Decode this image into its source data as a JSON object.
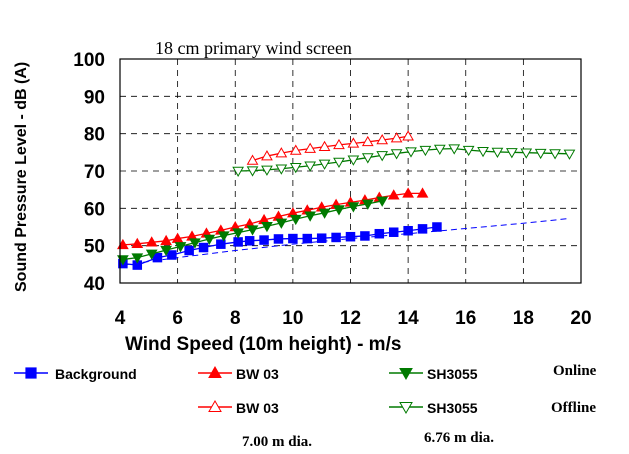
{
  "chart_data": {
    "type": "line",
    "title": "18 cm primary wind screen",
    "xlabel": "Wind Speed (10m height) - m/s",
    "ylabel": "Sound Pressure Level - dB (A)",
    "xlim": [
      4,
      20
    ],
    "ylim": [
      40,
      100
    ],
    "xticks": [
      "4",
      "6",
      "8",
      "10",
      "12",
      "14",
      "16",
      "18",
      "20"
    ],
    "yticks": [
      "40",
      "50",
      "60",
      "70",
      "80",
      "90",
      "100"
    ],
    "grid": "dashed",
    "series": [
      {
        "name": "Background",
        "color": "#0000ff",
        "marker": "square-filled",
        "x": [
          4.1,
          4.6,
          5.3,
          5.8,
          6.4,
          6.9,
          7.5,
          8.1,
          8.5,
          9.0,
          9.5,
          10.0,
          10.5,
          11.0,
          11.5,
          12.0,
          12.5,
          13.0,
          13.5,
          14.0,
          14.5,
          15.0
        ],
        "y": [
          45.2,
          44.8,
          46.8,
          47.5,
          48.7,
          49.5,
          50.4,
          51.0,
          51.3,
          51.5,
          51.8,
          51.9,
          51.9,
          52.0,
          52.2,
          52.4,
          52.6,
          53.2,
          53.6,
          54.0,
          54.5,
          55.0
        ]
      },
      {
        "name": "Background trend",
        "color": "#0000ff",
        "style": "dashed",
        "x": [
          4.1,
          6,
          8,
          10,
          12,
          14,
          16,
          18,
          19.5
        ],
        "y": [
          44.8,
          46.8,
          48.7,
          50.4,
          51.9,
          53.2,
          54.6,
          56.0,
          57.2
        ]
      },
      {
        "name": "BW 03 Online",
        "color": "#ff0000",
        "marker": "triangle-up-filled",
        "x": [
          4.1,
          4.6,
          5.1,
          5.6,
          6.0,
          6.5,
          7.0,
          7.5,
          8.0,
          8.5,
          9.0,
          9.5,
          10.0,
          10.5,
          11.0,
          11.5,
          12.0,
          12.5,
          13.0,
          13.5,
          14.0,
          14.5
        ],
        "y": [
          50.2,
          50.5,
          50.9,
          51.3,
          51.9,
          52.5,
          53.3,
          54.1,
          55.0,
          55.8,
          56.9,
          57.8,
          58.7,
          59.5,
          60.3,
          61.0,
          61.6,
          62.2,
          62.9,
          63.5,
          64.0,
          64.0
        ]
      },
      {
        "name": "BW 03 Offline",
        "color": "#ff0000",
        "marker": "triangle-up-open",
        "x": [
          8.6,
          9.1,
          9.6,
          10.1,
          10.6,
          11.1,
          11.6,
          12.1,
          12.6,
          13.1,
          13.6,
          14.0
        ],
        "y": [
          72.8,
          74.0,
          74.8,
          75.5,
          76.0,
          76.5,
          77.0,
          77.4,
          77.8,
          78.3,
          78.8,
          79.3
        ]
      },
      {
        "name": "SH3055 Online",
        "color": "#007a00",
        "marker": "triangle-down-filled",
        "x": [
          4.1,
          4.6,
          5.1,
          5.6,
          6.1,
          6.6,
          7.1,
          7.6,
          8.1,
          8.6,
          9.1,
          9.6,
          10.1,
          10.6,
          11.1,
          11.6,
          12.1,
          12.6,
          13.1
        ],
        "y": [
          46.3,
          46.8,
          47.8,
          48.8,
          49.8,
          50.8,
          51.8,
          52.7,
          53.5,
          54.3,
          55.2,
          56.1,
          57.1,
          58.0,
          58.8,
          59.7,
          60.5,
          61.2,
          62.0
        ]
      },
      {
        "name": "SH3055 Offline",
        "color": "#007a00",
        "marker": "triangle-down-open",
        "x": [
          8.1,
          8.6,
          9.1,
          9.6,
          10.1,
          10.6,
          11.1,
          11.6,
          12.1,
          12.6,
          13.1,
          13.6,
          14.1,
          14.6,
          15.1,
          15.6,
          16.1,
          16.6,
          17.1,
          17.6,
          18.1,
          18.6,
          19.1,
          19.6
        ],
        "y": [
          70.0,
          70.1,
          70.3,
          70.6,
          71.0,
          71.4,
          71.9,
          72.4,
          73.0,
          73.6,
          74.2,
          74.7,
          75.2,
          75.6,
          75.9,
          76.0,
          75.6,
          75.3,
          75.1,
          75.0,
          74.9,
          74.8,
          74.7,
          74.6
        ]
      }
    ]
  },
  "legend": {
    "background": "Background",
    "bw_online": "BW 03",
    "sh_online": "SH3055",
    "online_label": "Online",
    "bw_offline": "BW 03",
    "sh_offline": "SH3055",
    "offline_label": "Offline",
    "bw_dia": "7.00 m dia.",
    "sh_dia": "6.76 m dia."
  }
}
